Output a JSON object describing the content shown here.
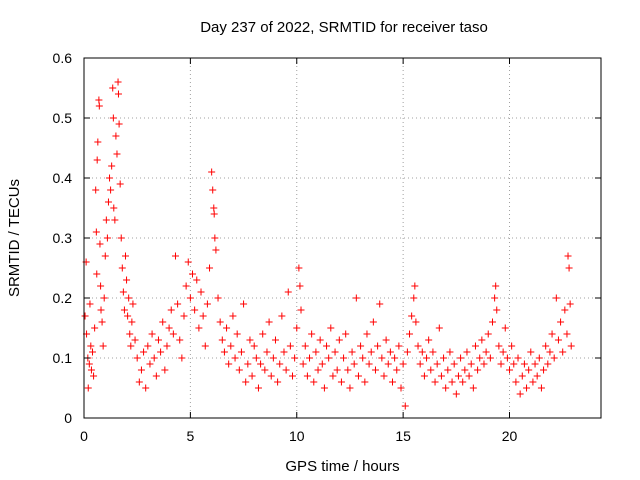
{
  "chart_data": {
    "type": "scatter",
    "title": "Day 237 of 2022, SRMTID for receiver taso",
    "xlabel": "GPS time / hours",
    "ylabel": "SRMTID / TECUs",
    "xlim": [
      0,
      24.3
    ],
    "ylim": [
      0,
      0.6
    ],
    "xticks": [
      0,
      5,
      10,
      15,
      20
    ],
    "xtick_labels": [
      "0",
      "5",
      "10",
      "15",
      "20"
    ],
    "yticks": [
      0,
      0.1,
      0.2,
      0.3,
      0.4,
      0.5,
      0.6
    ],
    "ytick_labels": [
      "0",
      "0.1",
      "0.2",
      "0.3",
      "0.4",
      "0.5",
      "0.6"
    ],
    "grid": true,
    "marker": "plus",
    "color": "#ff0000",
    "series": [
      {
        "name": "SRMTID",
        "points": [
          [
            0.05,
            0.17
          ],
          [
            0.1,
            0.26
          ],
          [
            0.12,
            0.14
          ],
          [
            0.18,
            0.1
          ],
          [
            0.2,
            0.05
          ],
          [
            0.25,
            0.09
          ],
          [
            0.28,
            0.19
          ],
          [
            0.32,
            0.12
          ],
          [
            0.35,
            0.08
          ],
          [
            0.4,
            0.11
          ],
          [
            0.45,
            0.07
          ],
          [
            0.5,
            0.15
          ],
          [
            0.55,
            0.38
          ],
          [
            0.58,
            0.31
          ],
          [
            0.6,
            0.24
          ],
          [
            0.62,
            0.43
          ],
          [
            0.65,
            0.46
          ],
          [
            0.7,
            0.53
          ],
          [
            0.72,
            0.52
          ],
          [
            0.75,
            0.29
          ],
          [
            0.78,
            0.22
          ],
          [
            0.8,
            0.18
          ],
          [
            0.85,
            0.16
          ],
          [
            0.9,
            0.12
          ],
          [
            0.95,
            0.2
          ],
          [
            1.0,
            0.27
          ],
          [
            1.05,
            0.33
          ],
          [
            1.1,
            0.3
          ],
          [
            1.15,
            0.36
          ],
          [
            1.2,
            0.4
          ],
          [
            1.25,
            0.38
          ],
          [
            1.3,
            0.42
          ],
          [
            1.35,
            0.55
          ],
          [
            1.38,
            0.5
          ],
          [
            1.4,
            0.35
          ],
          [
            1.45,
            0.33
          ],
          [
            1.5,
            0.47
          ],
          [
            1.55,
            0.44
          ],
          [
            1.6,
            0.56
          ],
          [
            1.62,
            0.54
          ],
          [
            1.65,
            0.49
          ],
          [
            1.7,
            0.39
          ],
          [
            1.75,
            0.3
          ],
          [
            1.8,
            0.25
          ],
          [
            1.85,
            0.21
          ],
          [
            1.9,
            0.18
          ],
          [
            1.95,
            0.27
          ],
          [
            2.0,
            0.23
          ],
          [
            2.05,
            0.17
          ],
          [
            2.1,
            0.2
          ],
          [
            2.15,
            0.14
          ],
          [
            2.2,
            0.12
          ],
          [
            2.25,
            0.16
          ],
          [
            2.3,
            0.19
          ],
          [
            2.4,
            0.13
          ],
          [
            2.5,
            0.1
          ],
          [
            2.6,
            0.06
          ],
          [
            2.7,
            0.08
          ],
          [
            2.8,
            0.11
          ],
          [
            2.9,
            0.05
          ],
          [
            3.0,
            0.12
          ],
          [
            3.1,
            0.09
          ],
          [
            3.2,
            0.14
          ],
          [
            3.3,
            0.1
          ],
          [
            3.4,
            0.07
          ],
          [
            3.5,
            0.13
          ],
          [
            3.6,
            0.11
          ],
          [
            3.7,
            0.16
          ],
          [
            3.8,
            0.08
          ],
          [
            3.9,
            0.12
          ],
          [
            4.0,
            0.15
          ],
          [
            4.1,
            0.18
          ],
          [
            4.2,
            0.14
          ],
          [
            4.3,
            0.27
          ],
          [
            4.4,
            0.19
          ],
          [
            4.5,
            0.13
          ],
          [
            4.6,
            0.1
          ],
          [
            4.7,
            0.17
          ],
          [
            4.8,
            0.22
          ],
          [
            4.9,
            0.26
          ],
          [
            5.0,
            0.2
          ],
          [
            5.1,
            0.24
          ],
          [
            5.2,
            0.18
          ],
          [
            5.3,
            0.23
          ],
          [
            5.4,
            0.15
          ],
          [
            5.5,
            0.21
          ],
          [
            5.6,
            0.17
          ],
          [
            5.7,
            0.12
          ],
          [
            5.8,
            0.19
          ],
          [
            5.9,
            0.25
          ],
          [
            6.0,
            0.41
          ],
          [
            6.05,
            0.38
          ],
          [
            6.1,
            0.35
          ],
          [
            6.12,
            0.34
          ],
          [
            6.15,
            0.3
          ],
          [
            6.2,
            0.28
          ],
          [
            6.3,
            0.2
          ],
          [
            6.4,
            0.16
          ],
          [
            6.5,
            0.13
          ],
          [
            6.6,
            0.11
          ],
          [
            6.7,
            0.15
          ],
          [
            6.8,
            0.09
          ],
          [
            6.9,
            0.12
          ],
          [
            7.0,
            0.17
          ],
          [
            7.1,
            0.1
          ],
          [
            7.2,
            0.14
          ],
          [
            7.3,
            0.08
          ],
          [
            7.4,
            0.11
          ],
          [
            7.5,
            0.19
          ],
          [
            7.6,
            0.06
          ],
          [
            7.7,
            0.09
          ],
          [
            7.8,
            0.13
          ],
          [
            7.9,
            0.07
          ],
          [
            8.0,
            0.12
          ],
          [
            8.1,
            0.1
          ],
          [
            8.2,
            0.05
          ],
          [
            8.3,
            0.09
          ],
          [
            8.4,
            0.14
          ],
          [
            8.5,
            0.08
          ],
          [
            8.6,
            0.11
          ],
          [
            8.7,
            0.16
          ],
          [
            8.8,
            0.07
          ],
          [
            8.9,
            0.1
          ],
          [
            9.0,
            0.13
          ],
          [
            9.1,
            0.06
          ],
          [
            9.2,
            0.09
          ],
          [
            9.3,
            0.17
          ],
          [
            9.4,
            0.11
          ],
          [
            9.5,
            0.08
          ],
          [
            9.6,
            0.21
          ],
          [
            9.7,
            0.12
          ],
          [
            9.8,
            0.07
          ],
          [
            9.9,
            0.1
          ],
          [
            10.0,
            0.15
          ],
          [
            10.1,
            0.25
          ],
          [
            10.15,
            0.22
          ],
          [
            10.2,
            0.18
          ],
          [
            10.3,
            0.09
          ],
          [
            10.4,
            0.12
          ],
          [
            10.5,
            0.07
          ],
          [
            10.6,
            0.1
          ],
          [
            10.7,
            0.14
          ],
          [
            10.8,
            0.06
          ],
          [
            10.9,
            0.11
          ],
          [
            11.0,
            0.08
          ],
          [
            11.1,
            0.13
          ],
          [
            11.2,
            0.09
          ],
          [
            11.3,
            0.05
          ],
          [
            11.4,
            0.12
          ],
          [
            11.5,
            0.1
          ],
          [
            11.6,
            0.15
          ],
          [
            11.7,
            0.07
          ],
          [
            11.8,
            0.11
          ],
          [
            11.9,
            0.08
          ],
          [
            12.0,
            0.13
          ],
          [
            12.1,
            0.06
          ],
          [
            12.2,
            0.1
          ],
          [
            12.3,
            0.14
          ],
          [
            12.4,
            0.08
          ],
          [
            12.5,
            0.05
          ],
          [
            12.6,
            0.11
          ],
          [
            12.7,
            0.09
          ],
          [
            12.8,
            0.2
          ],
          [
            12.9,
            0.07
          ],
          [
            13.0,
            0.12
          ],
          [
            13.1,
            0.1
          ],
          [
            13.2,
            0.06
          ],
          [
            13.3,
            0.14
          ],
          [
            13.4,
            0.09
          ],
          [
            13.5,
            0.11
          ],
          [
            13.6,
            0.16
          ],
          [
            13.7,
            0.08
          ],
          [
            13.8,
            0.12
          ],
          [
            13.9,
            0.19
          ],
          [
            14.0,
            0.1
          ],
          [
            14.1,
            0.07
          ],
          [
            14.2,
            0.13
          ],
          [
            14.3,
            0.09
          ],
          [
            14.4,
            0.11
          ],
          [
            14.5,
            0.06
          ],
          [
            14.6,
            0.1
          ],
          [
            14.7,
            0.08
          ],
          [
            14.8,
            0.12
          ],
          [
            14.9,
            0.05
          ],
          [
            15.0,
            0.09
          ],
          [
            15.1,
            0.02
          ],
          [
            15.2,
            0.11
          ],
          [
            15.3,
            0.14
          ],
          [
            15.4,
            0.17
          ],
          [
            15.5,
            0.2
          ],
          [
            15.55,
            0.22
          ],
          [
            15.6,
            0.16
          ],
          [
            15.7,
            0.12
          ],
          [
            15.8,
            0.09
          ],
          [
            15.9,
            0.11
          ],
          [
            16.0,
            0.07
          ],
          [
            16.1,
            0.1
          ],
          [
            16.2,
            0.13
          ],
          [
            16.3,
            0.08
          ],
          [
            16.4,
            0.11
          ],
          [
            16.5,
            0.06
          ],
          [
            16.6,
            0.09
          ],
          [
            16.7,
            0.15
          ],
          [
            16.8,
            0.07
          ],
          [
            16.9,
            0.1
          ],
          [
            17.0,
            0.05
          ],
          [
            17.1,
            0.08
          ],
          [
            17.2,
            0.11
          ],
          [
            17.3,
            0.06
          ],
          [
            17.4,
            0.09
          ],
          [
            17.5,
            0.04
          ],
          [
            17.6,
            0.07
          ],
          [
            17.7,
            0.1
          ],
          [
            17.8,
            0.06
          ],
          [
            17.9,
            0.08
          ],
          [
            18.0,
            0.11
          ],
          [
            18.1,
            0.07
          ],
          [
            18.2,
            0.09
          ],
          [
            18.3,
            0.05
          ],
          [
            18.4,
            0.12
          ],
          [
            18.5,
            0.08
          ],
          [
            18.6,
            0.1
          ],
          [
            18.7,
            0.13
          ],
          [
            18.8,
            0.09
          ],
          [
            18.9,
            0.11
          ],
          [
            19.0,
            0.14
          ],
          [
            19.1,
            0.1
          ],
          [
            19.2,
            0.16
          ],
          [
            19.3,
            0.2
          ],
          [
            19.35,
            0.22
          ],
          [
            19.4,
            0.18
          ],
          [
            19.5,
            0.12
          ],
          [
            19.6,
            0.09
          ],
          [
            19.7,
            0.11
          ],
          [
            19.8,
            0.15
          ],
          [
            19.9,
            0.1
          ],
          [
            20.0,
            0.08
          ],
          [
            20.1,
            0.12
          ],
          [
            20.2,
            0.09
          ],
          [
            20.3,
            0.06
          ],
          [
            20.4,
            0.1
          ],
          [
            20.5,
            0.04
          ],
          [
            20.6,
            0.07
          ],
          [
            20.7,
            0.09
          ],
          [
            20.8,
            0.05
          ],
          [
            20.9,
            0.08
          ],
          [
            21.0,
            0.11
          ],
          [
            21.1,
            0.06
          ],
          [
            21.2,
            0.09
          ],
          [
            21.3,
            0.07
          ],
          [
            21.4,
            0.1
          ],
          [
            21.5,
            0.05
          ],
          [
            21.6,
            0.08
          ],
          [
            21.7,
            0.12
          ],
          [
            21.8,
            0.09
          ],
          [
            21.9,
            0.11
          ],
          [
            22.0,
            0.14
          ],
          [
            22.1,
            0.1
          ],
          [
            22.2,
            0.2
          ],
          [
            22.3,
            0.13
          ],
          [
            22.4,
            0.16
          ],
          [
            22.5,
            0.11
          ],
          [
            22.6,
            0.18
          ],
          [
            22.7,
            0.14
          ],
          [
            22.75,
            0.27
          ],
          [
            22.8,
            0.25
          ],
          [
            22.85,
            0.19
          ],
          [
            22.9,
            0.12
          ]
        ]
      }
    ]
  }
}
